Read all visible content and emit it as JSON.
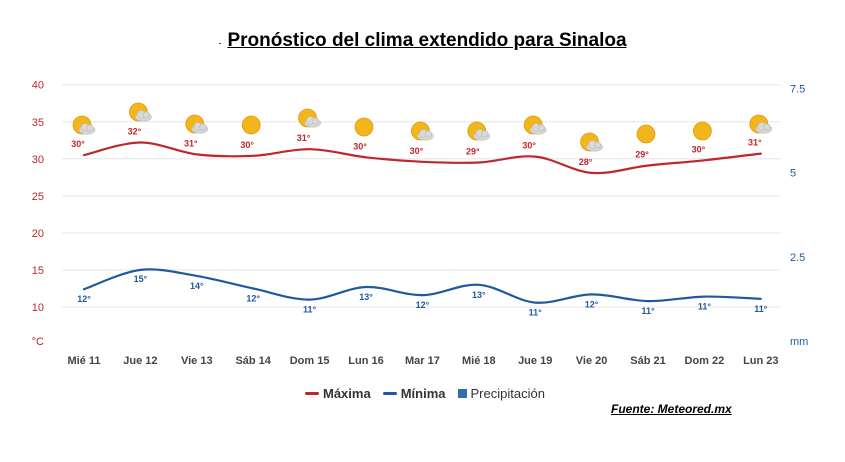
{
  "title": "Pronóstico del clima extendido para Sinaloa",
  "title_prefix": "-",
  "source": "Fuente: Meteored.mx",
  "legend": [
    {
      "label": "Máxima",
      "color": "#c0272d",
      "kind": "line",
      "bold": true
    },
    {
      "label": "Mínima",
      "color": "#1f5a9e",
      "kind": "line",
      "bold": true
    },
    {
      "label": "Precipitación",
      "color": "#2f6fb0",
      "kind": "box",
      "bold": false
    }
  ],
  "chart_data": {
    "type": "line",
    "categories": [
      "Mié 11",
      "Jue 12",
      "Vie 13",
      "Sáb 14",
      "Dom 15",
      "Lun 16",
      "Mar 17",
      "Mié 18",
      "Jue 19",
      "Vie 20",
      "Sáb 21",
      "Dom 22",
      "Lun 23"
    ],
    "series": [
      {
        "name": "Máxima",
        "color": "#c0272d",
        "values": [
          30,
          32,
          31,
          30,
          31,
          30,
          30,
          29,
          30,
          28,
          29,
          30,
          31
        ],
        "curve": [
          30.5,
          32.2,
          30.6,
          30.4,
          31.3,
          30.2,
          29.6,
          29.5,
          30.3,
          28.1,
          29.1,
          29.8,
          30.7
        ]
      },
      {
        "name": "Mínima",
        "color": "#1f5a9e",
        "values": [
          12,
          15,
          14,
          12,
          11,
          13,
          12,
          13,
          11,
          12,
          11,
          11,
          11
        ],
        "curve": [
          12.4,
          15.0,
          14.2,
          12.5,
          11.0,
          12.7,
          11.6,
          13.0,
          10.6,
          11.7,
          10.8,
          11.4,
          11.1
        ]
      },
      {
        "name": "Precipitación",
        "color": "#2f6fb0",
        "values": [
          0,
          0,
          0,
          0,
          0,
          0,
          0,
          0,
          0,
          0,
          0,
          0,
          0
        ]
      }
    ],
    "y_left": {
      "unit": "°C",
      "ticks": [
        10,
        15,
        20,
        25,
        30,
        35,
        40
      ],
      "range": [
        6,
        40
      ]
    },
    "y_right": {
      "unit": "mm",
      "ticks": [
        2.5,
        5,
        7.5
      ],
      "range": [
        0,
        7.5
      ]
    },
    "grid": true,
    "legend_position": "bottom",
    "icons": [
      "partly-cloudy",
      "partly-cloudy",
      "partly-cloudy",
      "sunny",
      "partly-cloudy",
      "sunny",
      "partly-cloudy",
      "partly-cloudy",
      "partly-cloudy",
      "partly-cloudy",
      "sunny",
      "sunny",
      "partly-cloudy"
    ]
  },
  "colors": {
    "grid": "#e6e6e6",
    "axis_left": "#c0272d",
    "axis_right": "#1f5a9e",
    "axis_text": "#444444",
    "sun": "#f2b51c",
    "cloud": "#d9d9d9"
  }
}
